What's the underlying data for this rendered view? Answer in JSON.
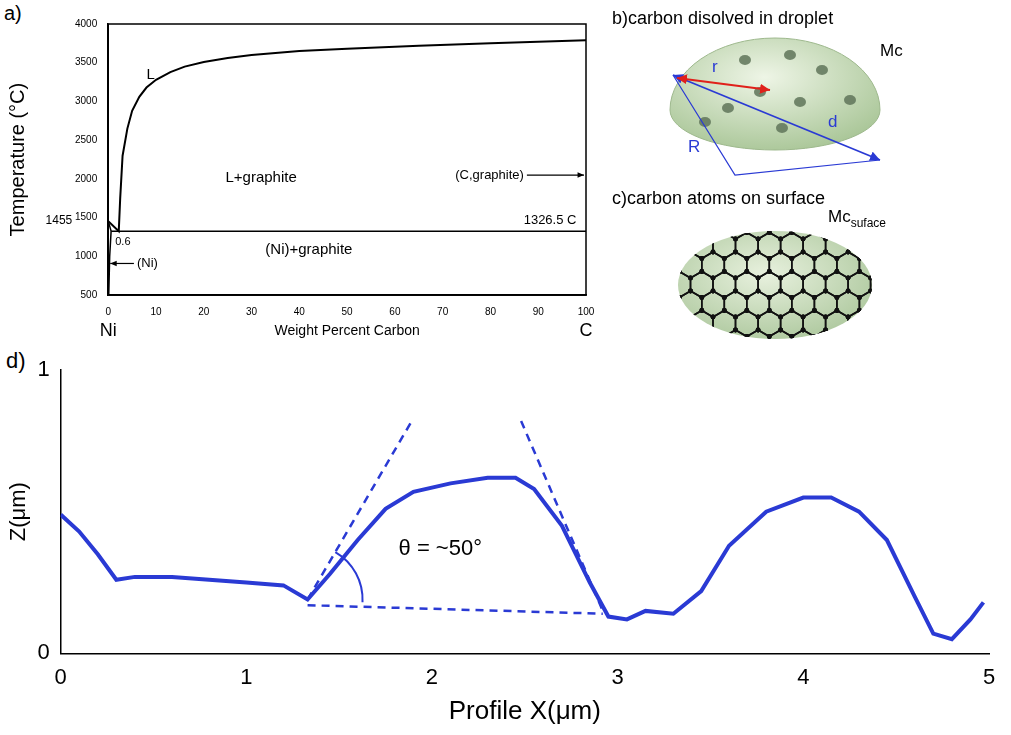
{
  "chart_data": [
    {
      "panel": "a)",
      "type": "line",
      "x_label": "Weight Percent Carbon",
      "y_label": "Temperature (°C)",
      "xlim": [
        0,
        100
      ],
      "ylim": [
        500,
        4000
      ],
      "xticks": [
        0,
        10,
        20,
        30,
        40,
        50,
        60,
        70,
        80,
        90,
        100
      ],
      "yticks": [
        500,
        1000,
        1500,
        2000,
        2500,
        3000,
        3500,
        4000
      ],
      "grid": false,
      "series": [
        {
          "color": "#000000",
          "line_style": "solid",
          "x": [
            0,
            2.2,
            2.5,
            3,
            4,
            5,
            6.5,
            8,
            10,
            13,
            16,
            20,
            25,
            30,
            40,
            50,
            65,
            80,
            100
          ],
          "values": [
            1455,
            1326.5,
            1750,
            2300,
            2650,
            2880,
            3060,
            3180,
            3280,
            3380,
            3450,
            3510,
            3560,
            3600,
            3650,
            3680,
            3720,
            3750,
            3790
          ]
        },
        {
          "color": "#000000",
          "line_style": "solid",
          "x": [
            0,
            0.6
          ],
          "values": [
            1455,
            1326.5
          ]
        },
        {
          "color": "#000000",
          "line_style": "solid",
          "x": [
            0.6,
            100
          ],
          "values": [
            1326.5,
            1326.5
          ]
        },
        {
          "color": "#000000",
          "line_style": "solid",
          "x": [
            0.6,
            0.3,
            0.1
          ],
          "values": [
            1326.5,
            1000,
            500
          ]
        }
      ],
      "annotations": [
        "L",
        "L+graphite",
        "(C,graphite)",
        "1326.5 C",
        "0.6",
        "(Ni)",
        "(Ni)+graphite",
        "1455",
        "Ni",
        "C"
      ]
    },
    {
      "panel": "d)",
      "type": "line",
      "x_label": "Profile X(μm)",
      "y_label": "Z(μm)",
      "xlim": [
        0,
        5
      ],
      "ylim": [
        0,
        1
      ],
      "xticks": [
        0,
        1,
        2,
        3,
        4,
        5
      ],
      "yticks": [
        0,
        1
      ],
      "grid": false,
      "series": [
        {
          "color": "#2a3ad4",
          "line_style": "solid",
          "x": [
            0,
            0.1,
            0.2,
            0.3,
            0.4,
            0.6,
            0.8,
            1.0,
            1.2,
            1.33,
            1.45,
            1.6,
            1.75,
            1.9,
            2.1,
            2.3,
            2.45,
            2.55,
            2.7,
            2.85,
            2.95,
            3.05,
            3.15,
            3.3,
            3.45,
            3.6,
            3.8,
            4.0,
            4.15,
            4.3,
            4.45,
            4.6,
            4.7,
            4.8,
            4.9,
            4.97
          ],
          "values": [
            0.49,
            0.43,
            0.35,
            0.26,
            0.27,
            0.27,
            0.26,
            0.25,
            0.24,
            0.19,
            0.28,
            0.4,
            0.51,
            0.57,
            0.6,
            0.62,
            0.62,
            0.58,
            0.45,
            0.25,
            0.13,
            0.12,
            0.15,
            0.14,
            0.22,
            0.38,
            0.5,
            0.55,
            0.55,
            0.5,
            0.4,
            0.2,
            0.07,
            0.05,
            0.12,
            0.18
          ]
        },
        {
          "color": "#2a3ad4",
          "line_style": "dashed",
          "x": [
            1.33,
            1.9
          ],
          "values": [
            0.19,
            0.83
          ]
        },
        {
          "color": "#2a3ad4",
          "line_style": "dashed",
          "x": [
            2.48,
            2.92
          ],
          "values": [
            0.82,
            0.15
          ]
        },
        {
          "color": "#2a3ad4",
          "line_style": "dashed",
          "x": [
            1.33,
            2.92
          ],
          "values": [
            0.17,
            0.14
          ]
        }
      ],
      "annotations": [
        "θ = ~50°"
      ]
    }
  ],
  "diagrams": [
    {
      "label": "b)carbon disolved in droplet",
      "quantity": "Mc",
      "markers": [
        "r",
        "d",
        "R"
      ]
    },
    {
      "label": "c)carbon atoms on surface",
      "quantity": {
        "main": "Mc",
        "sub": "suface"
      }
    }
  ]
}
